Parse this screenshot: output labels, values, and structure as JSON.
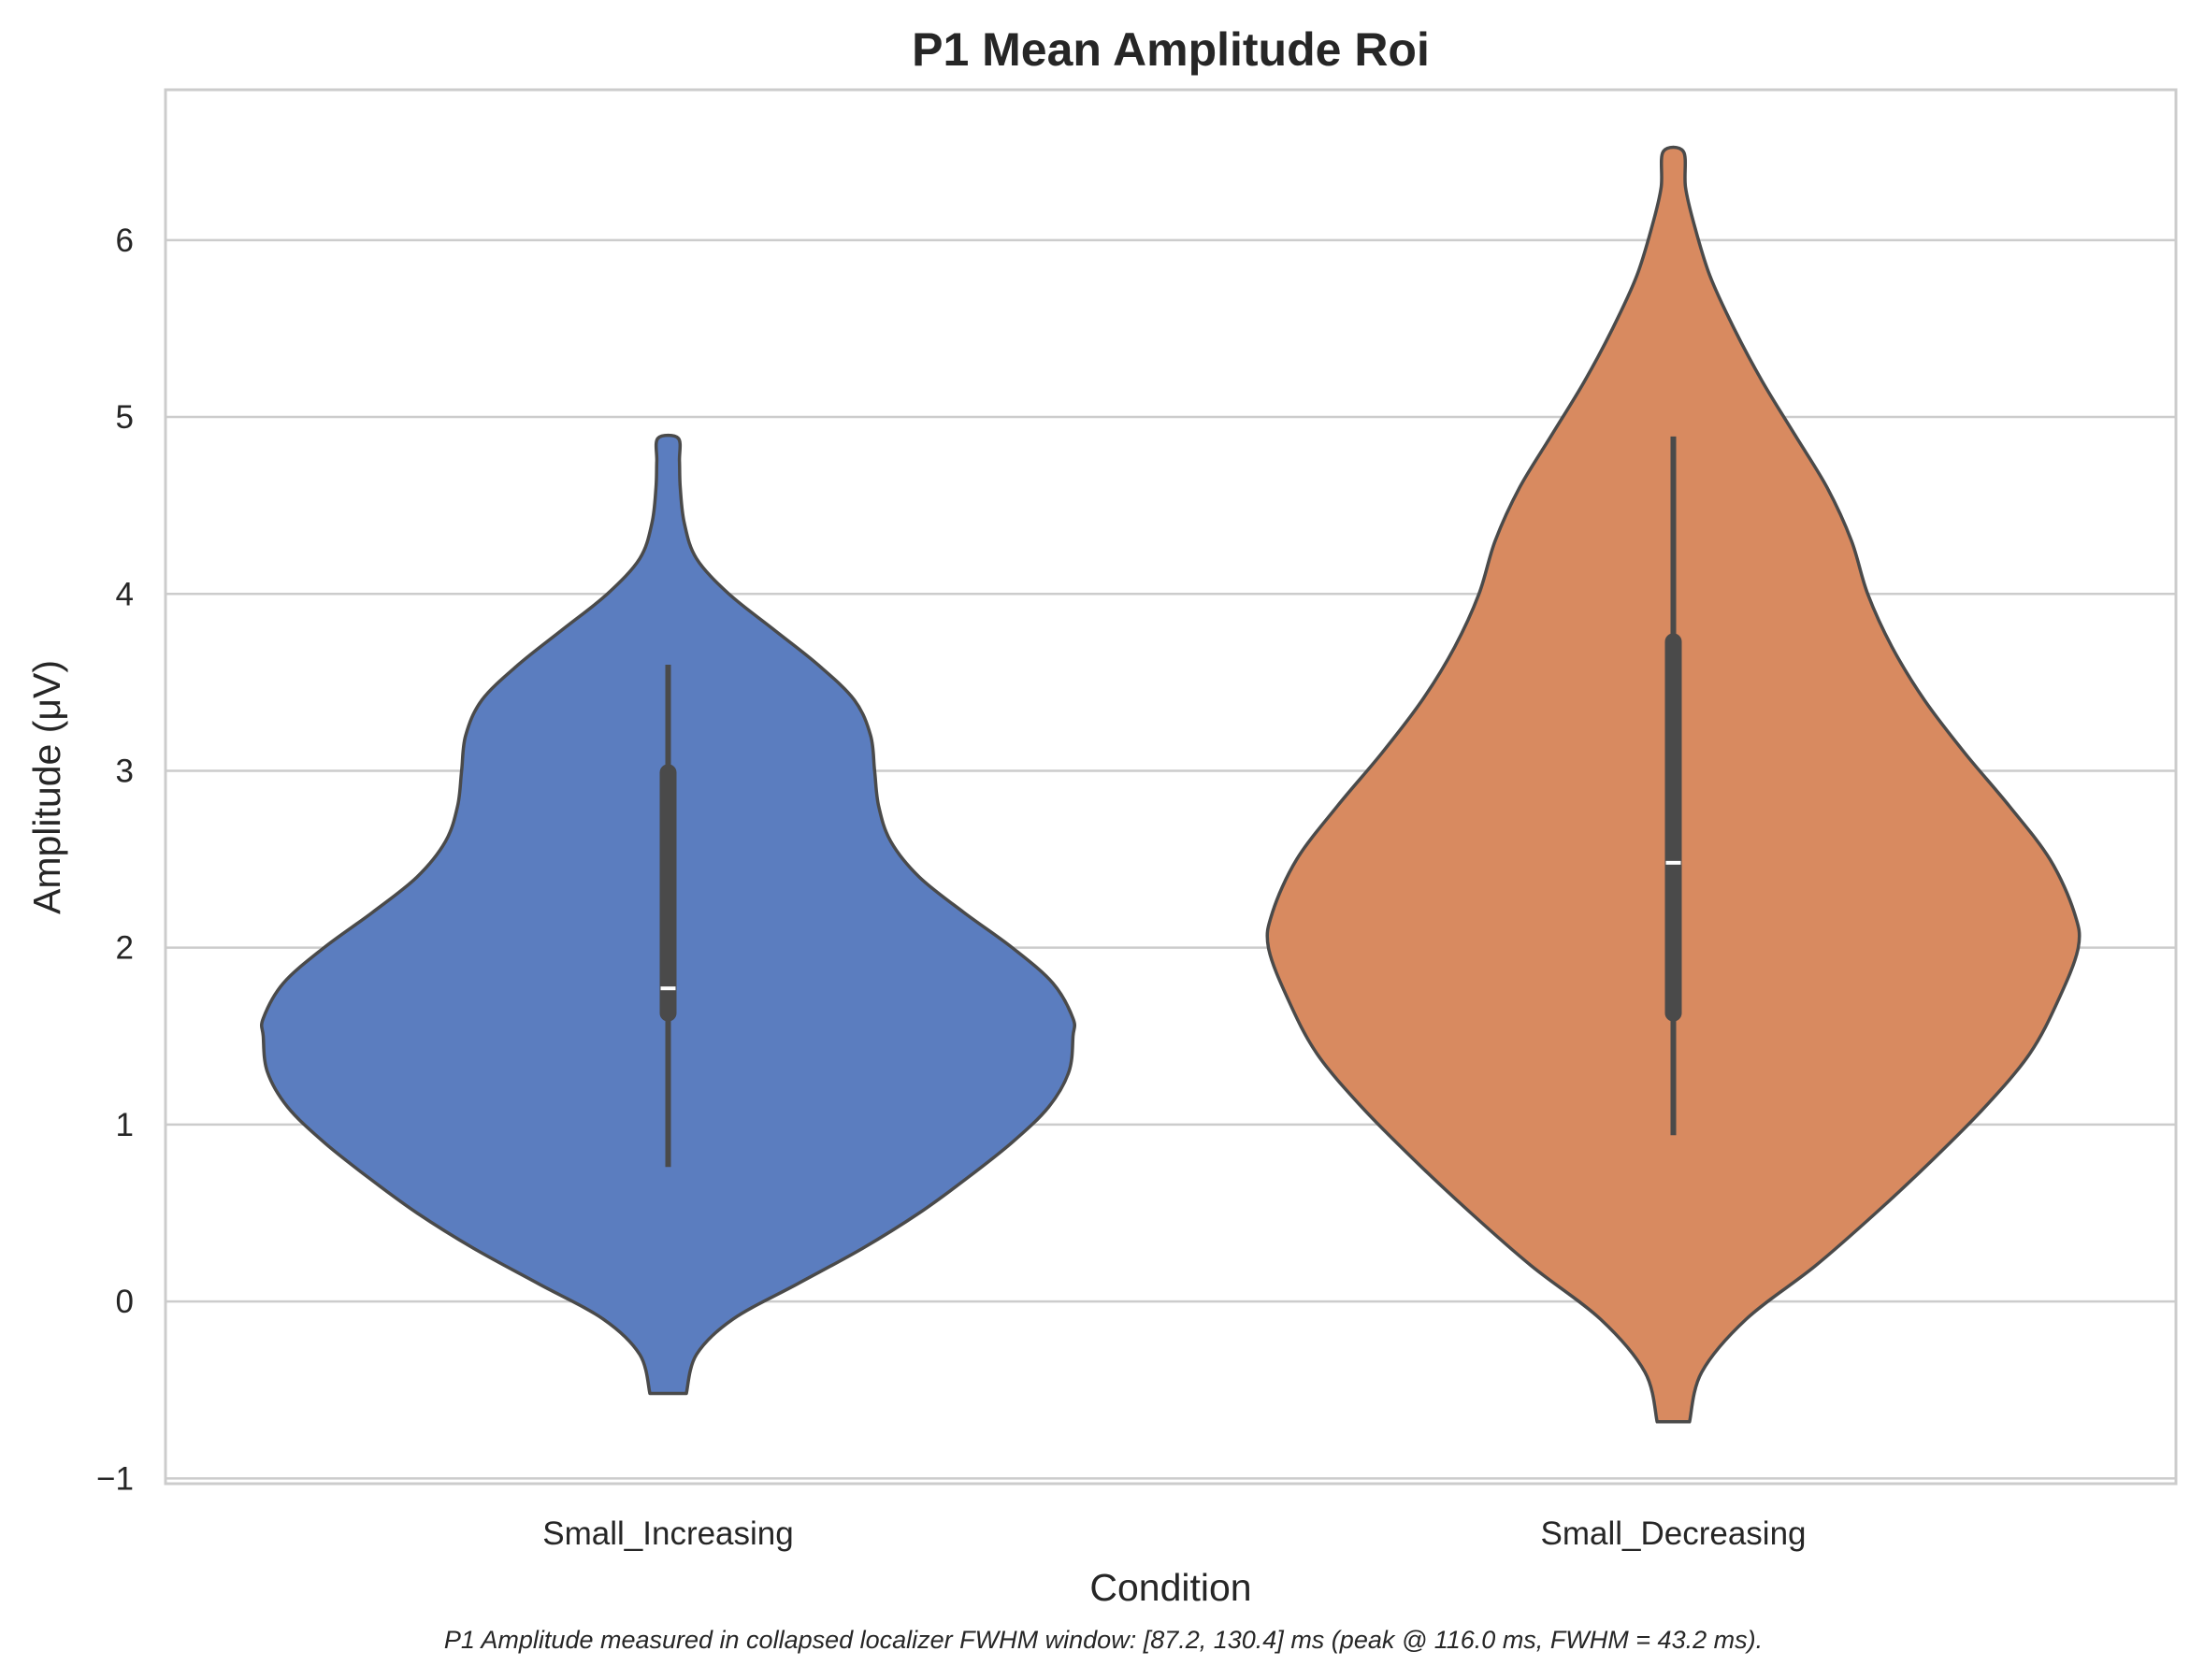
{
  "chart_data": {
    "type": "violin",
    "title": "P1 Mean Amplitude Roi",
    "xlabel": "Condition",
    "ylabel": "Amplitude (μV)",
    "caption": "P1 Amplitude measured in collapsed localizer FWHM window: [87.2, 130.4] ms (peak @ 116.0 ms, FWHM = 43.2 ms).",
    "categories": [
      "Small_Increasing",
      "Small_Decreasing"
    ],
    "ylim": [
      -1.03,
      6.85
    ],
    "yticks": [
      -1,
      0,
      1,
      2,
      3,
      4,
      5,
      6
    ],
    "ytick_labels": [
      "−1",
      "0",
      "1",
      "2",
      "3",
      "4",
      "5",
      "6"
    ],
    "grid": "horizontal",
    "series": [
      {
        "category": "Small_Increasing",
        "color": "#5b7dbf",
        "range": [
          -0.52,
          4.88
        ],
        "whisker": [
          0.76,
          3.6
        ],
        "quartiles": [
          1.63,
          2.99
        ],
        "median": 1.77,
        "density": [
          [
            -0.52,
            0.045
          ],
          [
            -0.3,
            0.07
          ],
          [
            -0.1,
            0.16
          ],
          [
            0.1,
            0.32
          ],
          [
            0.3,
            0.48
          ],
          [
            0.5,
            0.62
          ],
          [
            0.7,
            0.74
          ],
          [
            0.9,
            0.85
          ],
          [
            1.1,
            0.94
          ],
          [
            1.3,
            0.99
          ],
          [
            1.5,
            1.0
          ],
          [
            1.6,
            1.0
          ],
          [
            1.8,
            0.95
          ],
          [
            2.0,
            0.85
          ],
          [
            2.2,
            0.73
          ],
          [
            2.4,
            0.62
          ],
          [
            2.6,
            0.55
          ],
          [
            2.8,
            0.52
          ],
          [
            3.0,
            0.51
          ],
          [
            3.2,
            0.5
          ],
          [
            3.4,
            0.46
          ],
          [
            3.6,
            0.37
          ],
          [
            3.8,
            0.26
          ],
          [
            4.0,
            0.15
          ],
          [
            4.2,
            0.07
          ],
          [
            4.4,
            0.04
          ],
          [
            4.6,
            0.03
          ],
          [
            4.75,
            0.028
          ],
          [
            4.88,
            0.025
          ]
        ]
      },
      {
        "category": "Small_Decreasing",
        "color": "#d88a60",
        "range": [
          -0.68,
          6.5
        ],
        "whisker": [
          0.94,
          4.89
        ],
        "quartiles": [
          1.63,
          3.73
        ],
        "median": 2.48,
        "density": [
          [
            -0.68,
            0.04
          ],
          [
            -0.4,
            0.07
          ],
          [
            -0.1,
            0.18
          ],
          [
            0.2,
            0.35
          ],
          [
            0.5,
            0.5
          ],
          [
            0.8,
            0.64
          ],
          [
            1.1,
            0.77
          ],
          [
            1.4,
            0.88
          ],
          [
            1.7,
            0.95
          ],
          [
            2.0,
            1.0
          ],
          [
            2.2,
            0.99
          ],
          [
            2.5,
            0.93
          ],
          [
            2.8,
            0.83
          ],
          [
            3.1,
            0.72
          ],
          [
            3.4,
            0.62
          ],
          [
            3.7,
            0.54
          ],
          [
            4.0,
            0.48
          ],
          [
            4.3,
            0.44
          ],
          [
            4.6,
            0.38
          ],
          [
            4.9,
            0.3
          ],
          [
            5.2,
            0.22
          ],
          [
            5.5,
            0.15
          ],
          [
            5.8,
            0.09
          ],
          [
            6.1,
            0.05
          ],
          [
            6.3,
            0.03
          ],
          [
            6.5,
            0.025
          ]
        ]
      }
    ]
  }
}
